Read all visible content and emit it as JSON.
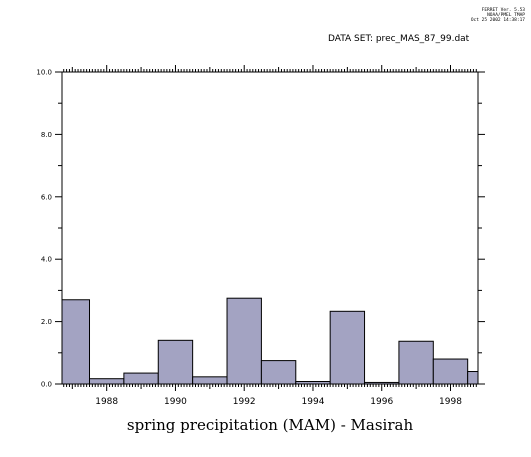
{
  "header": {
    "line1": "FERRET Ver. 5.53",
    "line2": "NOAA/PMEL TMAP",
    "line3": "Oct 25 2002 14:38:17",
    "dataset_label": "DATA SET: prec_MAS_87_99.dat"
  },
  "colors": {
    "bar_fill": "#a3a3c2",
    "bar_stroke": "#000000"
  },
  "chart_data": {
    "type": "bar",
    "title": "",
    "xlabel": "spring precipitation (MAM) - Masirah",
    "ylabel": "",
    "xlim": [
      1986.7,
      1998.8
    ],
    "ylim": [
      0.0,
      10.0
    ],
    "x_ticks": [
      "1988",
      "1990",
      "1992",
      "1994",
      "1996",
      "1998"
    ],
    "y_ticks": [
      "0.0",
      "2.0",
      "4.0",
      "6.0",
      "8.0",
      "10.0"
    ],
    "grid": false,
    "categories": [
      "1987",
      "1988",
      "1989",
      "1990",
      "1991",
      "1992",
      "1993",
      "1994",
      "1995",
      "1996",
      "1997",
      "1998",
      "1999"
    ],
    "values": [
      2.7,
      0.17,
      0.35,
      1.4,
      0.23,
      2.75,
      0.75,
      0.08,
      2.33,
      0.05,
      1.37,
      0.8,
      0.4
    ]
  }
}
